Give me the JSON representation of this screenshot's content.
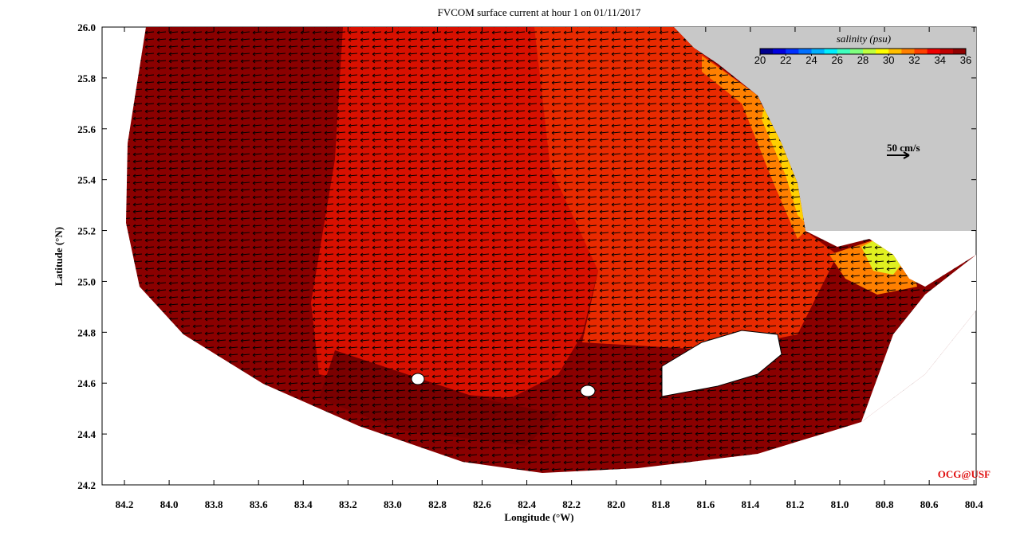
{
  "chart_data": {
    "type": "map",
    "title": "FVCOM surface current at hour 1 on 01/11/2017",
    "x_label": "Longitude (°W)",
    "y_label": "Latitude (°N)",
    "xlim": [
      84.3,
      80.39
    ],
    "ylim": [
      24.2,
      26.0
    ],
    "xticks": [
      84.2,
      {
        "value": 84,
        "label": "84.0"
      },
      83.8,
      83.6,
      83.4,
      83.2,
      {
        "value": 83,
        "label": "83.0"
      },
      82.8,
      82.6,
      82.4,
      82.2,
      {
        "value": 82,
        "label": "82.0"
      },
      81.8,
      81.6,
      81.4,
      81.2,
      {
        "value": 81,
        "label": "81.0"
      },
      80.8,
      80.6,
      80.4
    ],
    "yticks": [
      24.2,
      24.4,
      24.6,
      24.8,
      {
        "value": 25,
        "label": "25.0"
      },
      25.2,
      25.4,
      25.6,
      25.8,
      {
        "value": 26,
        "label": "26.0"
      }
    ],
    "colorbar": {
      "label": "salinity (psu)",
      "clim": [
        20,
        36
      ],
      "ticks": [
        20,
        22,
        24,
        26,
        28,
        30,
        32,
        34,
        36
      ],
      "colors": [
        "#00008f",
        "#0000df",
        "#0030ff",
        "#0070ff",
        "#00b0ff",
        "#00efff",
        "#40ffbf",
        "#80ff80",
        "#bfff40",
        "#ffff00",
        "#ffbf00",
        "#ff8000",
        "#ff4000",
        "#ef0000",
        "#bf0000",
        "#8f0000"
      ]
    },
    "scale_label": "50 cm/s",
    "credit": "OCG@USF"
  }
}
